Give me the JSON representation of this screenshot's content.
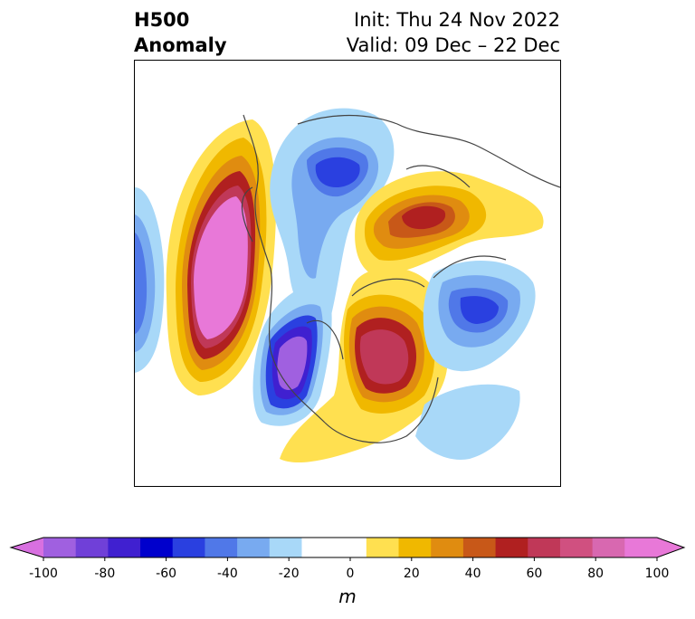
{
  "header": {
    "title_line1": "H500",
    "title_line2": "Anomaly",
    "init": "Init: Thu 24 Nov 2022",
    "valid": "Valid: 09 Dec – 22 Dec"
  },
  "colorbar": {
    "units": "m",
    "tick_labels": [
      "-100",
      "-80",
      "-60",
      "-40",
      "-20",
      "0",
      "20",
      "40",
      "60",
      "80",
      "100"
    ],
    "colors": {
      "lt_neg_end": "#d870e0",
      "bins": [
        "#a060e0",
        "#7040d8",
        "#4020d0",
        "#0000cc",
        "#2a40e0",
        "#5078e8",
        "#78aaf0",
        "#a8d8f8",
        "#ffffff",
        "#ffffff",
        "#ffe050",
        "#f0b800",
        "#e08c10",
        "#c85818",
        "#b02020",
        "#c03858",
        "#d05080",
        "#d868b0",
        "#e878d8"
      ],
      "gt_pos_end": "#e878d8"
    }
  },
  "map": {
    "features": [
      "coastlines",
      "country borders",
      "state/province borders"
    ]
  }
}
